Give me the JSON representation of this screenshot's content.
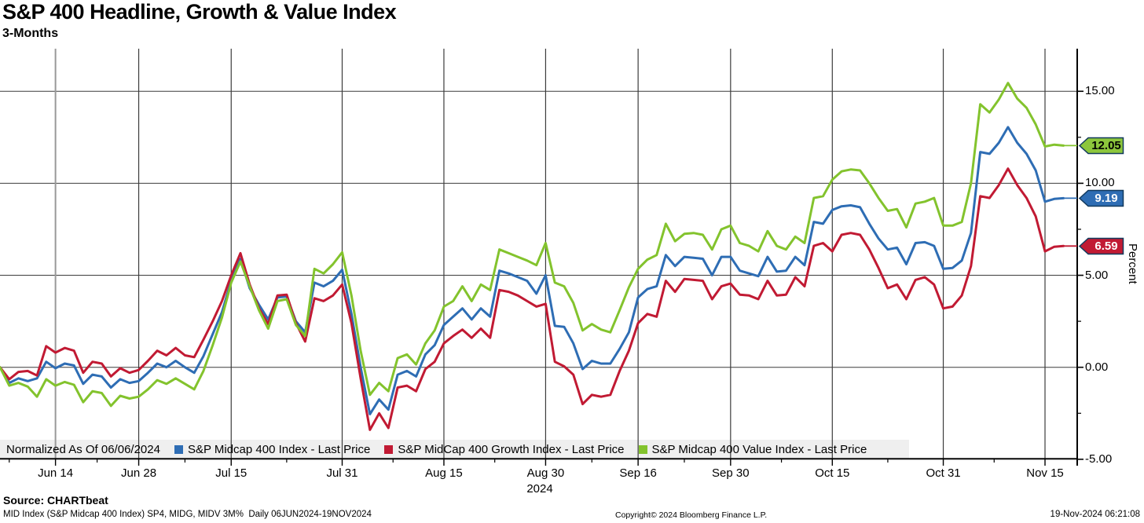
{
  "header": {
    "title": "S&P 400 Headline, Growth & Value Index",
    "subtitle": "3-Months"
  },
  "legend": {
    "normalized_note": "Normalized As Of 06/06/2024",
    "items": [
      {
        "label": "S&P Midcap 400 Index - Last Price",
        "color": "#2e6db4"
      },
      {
        "label": "S&P MidCap 400 Growth Index - Last Price",
        "color": "#c11a33"
      },
      {
        "label": "S&P Midcap 400 Value Index - Last Price",
        "color": "#83c32d"
      }
    ]
  },
  "y_axis": {
    "label": "Percent",
    "ticks": [
      {
        "value": 15,
        "label": "15.00"
      },
      {
        "value": 10,
        "label": "10.00"
      },
      {
        "value": 5,
        "label": "5.00"
      },
      {
        "value": 0,
        "label": "0.00"
      },
      {
        "value": -5,
        "label": "-5.00"
      }
    ],
    "minor_tick_values": [
      12.5,
      7.5,
      2.5,
      -2.5
    ]
  },
  "x_axis": {
    "year": "2024",
    "ticks": [
      {
        "label": "Jun 14",
        "day_index": 6
      },
      {
        "label": "Jun 28",
        "day_index": 15
      },
      {
        "label": "Jul 15",
        "day_index": 25
      },
      {
        "label": "Jul 31",
        "day_index": 37
      },
      {
        "label": "Aug 15",
        "day_index": 48
      },
      {
        "label": "Aug 30",
        "day_index": 59
      },
      {
        "label": "Sep 16",
        "day_index": 69
      },
      {
        "label": "Sep 30",
        "day_index": 79
      },
      {
        "label": "Oct 15",
        "day_index": 90
      },
      {
        "label": "Oct 31",
        "day_index": 102
      },
      {
        "label": "Nov 15",
        "day_index": 113
      }
    ],
    "minor_tick_indices": [
      1,
      10.5,
      20,
      31,
      42.5,
      53.5,
      64,
      74,
      84.5,
      96,
      107.5
    ]
  },
  "price_tags": [
    {
      "value": "12.05",
      "color": "#8cc63c",
      "text_color": "#000000",
      "series": "S&P Midcap 400 Value Index"
    },
    {
      "value": "9.19",
      "color": "#2e6db4",
      "text_color": "#ffffff",
      "series": "S&P Midcap 400 Index"
    },
    {
      "value": "6.59",
      "color": "#c11a33",
      "text_color": "#ffffff",
      "series": "S&P MidCap 400 Growth Index"
    }
  ],
  "footer": {
    "source": "Source: CHARTbeat",
    "ticker_line": "MID Index (S&P Midcap 400 Index) SP4, MIDG, MIDV 3M%  Daily 06JUN2024-19NOV2024",
    "copyright": "Copyright© 2024 Bloomberg Finance L.P.",
    "timestamp": "19-Nov-2024 06:21:08"
  },
  "chart_data": {
    "type": "line",
    "title": "S&P 400 Headline, Growth & Value Index",
    "subtitle": "3-Months",
    "ylabel": "Percent",
    "ylim": [
      -5,
      17.3
    ],
    "grid": true,
    "legend_position": "bottom",
    "normalized_as_of": "06/06/2024",
    "x": [
      "2024-06-06",
      "2024-06-07",
      "2024-06-10",
      "2024-06-11",
      "2024-06-12",
      "2024-06-13",
      "2024-06-14",
      "2024-06-17",
      "2024-06-18",
      "2024-06-20",
      "2024-06-21",
      "2024-06-24",
      "2024-06-25",
      "2024-06-26",
      "2024-06-27",
      "2024-06-28",
      "2024-07-01",
      "2024-07-02",
      "2024-07-03",
      "2024-07-05",
      "2024-07-08",
      "2024-07-09",
      "2024-07-10",
      "2024-07-11",
      "2024-07-12",
      "2024-07-15",
      "2024-07-16",
      "2024-07-17",
      "2024-07-18",
      "2024-07-19",
      "2024-07-22",
      "2024-07-23",
      "2024-07-24",
      "2024-07-25",
      "2024-07-26",
      "2024-07-29",
      "2024-07-30",
      "2024-07-31",
      "2024-08-01",
      "2024-08-02",
      "2024-08-05",
      "2024-08-06",
      "2024-08-07",
      "2024-08-08",
      "2024-08-09",
      "2024-08-12",
      "2024-08-13",
      "2024-08-14",
      "2024-08-15",
      "2024-08-16",
      "2024-08-19",
      "2024-08-20",
      "2024-08-21",
      "2024-08-22",
      "2024-08-23",
      "2024-08-26",
      "2024-08-27",
      "2024-08-28",
      "2024-08-29",
      "2024-08-30",
      "2024-09-03",
      "2024-09-04",
      "2024-09-05",
      "2024-09-06",
      "2024-09-09",
      "2024-09-10",
      "2024-09-11",
      "2024-09-12",
      "2024-09-13",
      "2024-09-16",
      "2024-09-17",
      "2024-09-18",
      "2024-09-19",
      "2024-09-20",
      "2024-09-23",
      "2024-09-24",
      "2024-09-25",
      "2024-09-26",
      "2024-09-27",
      "2024-09-30",
      "2024-10-01",
      "2024-10-02",
      "2024-10-03",
      "2024-10-04",
      "2024-10-07",
      "2024-10-08",
      "2024-10-09",
      "2024-10-10",
      "2024-10-11",
      "2024-10-14",
      "2024-10-15",
      "2024-10-16",
      "2024-10-17",
      "2024-10-18",
      "2024-10-21",
      "2024-10-22",
      "2024-10-23",
      "2024-10-24",
      "2024-10-25",
      "2024-10-28",
      "2024-10-29",
      "2024-10-30",
      "2024-10-31",
      "2024-11-01",
      "2024-11-04",
      "2024-11-05",
      "2024-11-06",
      "2024-11-07",
      "2024-11-08",
      "2024-11-11",
      "2024-11-12",
      "2024-11-13",
      "2024-11-14",
      "2024-11-15",
      "2024-11-18",
      "2024-11-19"
    ],
    "series": [
      {
        "name": "S&P Midcap 400 Index - Last Price",
        "color": "#2e6db4",
        "last_price": 9.19,
        "values": [
          0.0,
          -0.85,
          -0.6,
          -0.75,
          -0.6,
          0.3,
          -0.05,
          0.2,
          0.1,
          -0.9,
          -0.4,
          -0.5,
          -1.1,
          -0.65,
          -0.85,
          -0.75,
          -0.3,
          0.2,
          0.0,
          0.35,
          0.0,
          -0.3,
          0.6,
          1.8,
          3.0,
          4.7,
          5.9,
          4.3,
          3.4,
          2.6,
          3.8,
          3.85,
          2.5,
          1.9,
          4.6,
          4.4,
          4.7,
          5.3,
          2.9,
          0.0,
          -2.55,
          -1.75,
          -2.3,
          -0.4,
          -0.2,
          -0.5,
          0.7,
          1.2,
          2.3,
          2.75,
          3.2,
          2.6,
          3.2,
          2.75,
          5.25,
          5.1,
          4.9,
          4.7,
          4.0,
          5.0,
          2.25,
          2.2,
          1.3,
          -0.1,
          0.35,
          0.2,
          0.2,
          1.0,
          1.9,
          3.8,
          4.25,
          4.4,
          6.1,
          5.5,
          6.0,
          5.95,
          5.9,
          5.0,
          6.0,
          6.0,
          5.25,
          5.1,
          4.95,
          6.0,
          5.2,
          5.25,
          6.0,
          5.55,
          7.9,
          7.8,
          8.55,
          8.75,
          8.8,
          8.7,
          7.8,
          7.0,
          6.4,
          6.5,
          5.6,
          6.75,
          6.8,
          6.6,
          5.35,
          5.4,
          5.8,
          7.3,
          11.7,
          11.6,
          12.2,
          13.05,
          12.2,
          11.6,
          10.7,
          9.0,
          9.15,
          9.19
        ]
      },
      {
        "name": "S&P MidCap 400 Growth Index - Last Price",
        "color": "#c11a33",
        "last_price": 6.59,
        "values": [
          0.0,
          -0.65,
          -0.25,
          -0.2,
          -0.45,
          1.15,
          0.8,
          1.05,
          0.9,
          -0.3,
          0.3,
          0.2,
          -0.5,
          -0.05,
          -0.3,
          -0.15,
          0.35,
          0.9,
          0.65,
          1.05,
          0.65,
          0.55,
          1.5,
          2.5,
          3.6,
          5.0,
          6.2,
          4.5,
          3.2,
          2.35,
          3.9,
          3.95,
          2.4,
          1.4,
          3.75,
          3.6,
          3.9,
          4.5,
          2.4,
          -0.6,
          -3.4,
          -2.5,
          -3.3,
          -1.1,
          -1.0,
          -1.3,
          -0.1,
          0.3,
          1.3,
          1.7,
          2.05,
          1.6,
          2.1,
          1.6,
          4.2,
          4.1,
          3.9,
          3.6,
          3.3,
          3.45,
          0.3,
          0.05,
          -0.4,
          -2.0,
          -1.5,
          -1.6,
          -1.5,
          -0.2,
          0.9,
          2.4,
          2.9,
          2.75,
          4.7,
          4.1,
          4.8,
          4.75,
          4.7,
          3.7,
          4.4,
          4.55,
          3.95,
          3.9,
          3.7,
          4.7,
          3.9,
          3.95,
          4.9,
          4.4,
          6.6,
          6.75,
          6.3,
          7.2,
          7.3,
          7.2,
          6.4,
          5.4,
          4.3,
          4.5,
          3.7,
          4.75,
          4.9,
          4.5,
          3.2,
          3.3,
          3.9,
          5.5,
          9.3,
          9.2,
          9.9,
          10.8,
          9.9,
          9.2,
          8.2,
          6.3,
          6.55,
          6.59
        ]
      },
      {
        "name": "S&P Midcap 400 Value Index - Last Price",
        "color": "#83c32d",
        "last_price": 12.05,
        "values": [
          0.0,
          -1.0,
          -0.85,
          -1.05,
          -1.6,
          -0.65,
          -1.0,
          -0.8,
          -0.95,
          -1.9,
          -1.3,
          -1.4,
          -2.1,
          -1.55,
          -1.7,
          -1.6,
          -1.2,
          -0.7,
          -0.9,
          -0.6,
          -0.9,
          -1.2,
          -0.2,
          1.2,
          2.7,
          4.6,
          5.75,
          4.4,
          3.1,
          2.1,
          3.6,
          3.7,
          2.3,
          1.7,
          5.35,
          5.1,
          5.6,
          6.25,
          3.9,
          0.9,
          -1.5,
          -0.85,
          -1.3,
          0.5,
          0.7,
          0.15,
          1.3,
          2.0,
          3.3,
          3.6,
          4.4,
          3.6,
          4.5,
          4.2,
          6.4,
          6.2,
          6.0,
          5.8,
          5.55,
          6.75,
          4.6,
          4.4,
          3.5,
          2.0,
          2.35,
          2.05,
          1.9,
          3.1,
          4.35,
          5.35,
          5.85,
          6.1,
          7.8,
          6.85,
          7.25,
          7.3,
          7.2,
          6.4,
          7.5,
          7.7,
          6.75,
          6.6,
          6.3,
          7.4,
          6.6,
          6.4,
          7.1,
          6.75,
          9.2,
          9.3,
          10.2,
          10.65,
          10.75,
          10.7,
          10.0,
          9.2,
          8.5,
          8.6,
          7.6,
          8.9,
          9.0,
          9.2,
          7.7,
          7.7,
          7.9,
          10.0,
          14.3,
          13.85,
          14.55,
          15.45,
          14.6,
          14.1,
          13.2,
          12.0,
          12.1,
          12.05
        ]
      }
    ]
  }
}
